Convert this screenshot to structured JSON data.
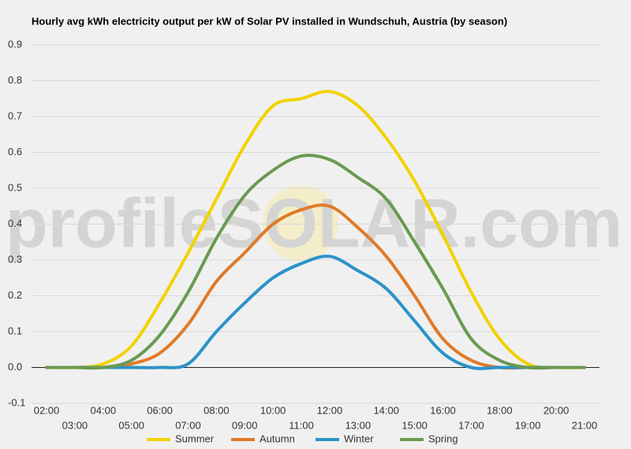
{
  "chart_data": {
    "type": "line",
    "title": "Hourly avg kWh electricity output per kW of Solar PV installed in Wundschuh, Austria (by season)",
    "watermark": "profileSOLAR.com",
    "categories": [
      "02:00",
      "03:00",
      "04:00",
      "05:00",
      "06:00",
      "07:00",
      "08:00",
      "09:00",
      "10:00",
      "11:00",
      "12:00",
      "13:00",
      "14:00",
      "15:00",
      "16:00",
      "17:00",
      "18:00",
      "19:00",
      "20:00",
      "21:00"
    ],
    "series": [
      {
        "name": "Summer",
        "color": "#f2d200",
        "values": [
          0,
          0,
          0.01,
          0.06,
          0.18,
          0.32,
          0.47,
          0.62,
          0.73,
          0.75,
          0.77,
          0.73,
          0.64,
          0.52,
          0.37,
          0.21,
          0.08,
          0.01,
          0,
          0
        ]
      },
      {
        "name": "Autumn",
        "color": "#e07a28",
        "values": [
          0,
          0,
          0,
          0.01,
          0.04,
          0.12,
          0.24,
          0.32,
          0.4,
          0.44,
          0.45,
          0.39,
          0.31,
          0.2,
          0.08,
          0.02,
          0,
          0,
          0,
          0
        ]
      },
      {
        "name": "Winter",
        "color": "#2b93c8",
        "values": [
          0,
          0,
          0,
          0,
          0,
          0.01,
          0.1,
          0.18,
          0.25,
          0.29,
          0.31,
          0.27,
          0.22,
          0.13,
          0.04,
          0,
          0,
          0,
          0,
          0
        ]
      },
      {
        "name": "Spring",
        "color": "#6a9a52",
        "values": [
          0,
          0,
          0,
          0.02,
          0.09,
          0.21,
          0.36,
          0.48,
          0.55,
          0.59,
          0.58,
          0.53,
          0.47,
          0.35,
          0.22,
          0.08,
          0.02,
          0,
          0,
          0
        ]
      }
    ],
    "ylim": [
      -0.1,
      0.9
    ],
    "yticks": [
      -0.1,
      {
        "value": 0,
        "label": "0.0"
      },
      0.1,
      0.2,
      0.3,
      0.4,
      0.5,
      0.6,
      0.7,
      0.8,
      0.9
    ],
    "grid": true
  }
}
